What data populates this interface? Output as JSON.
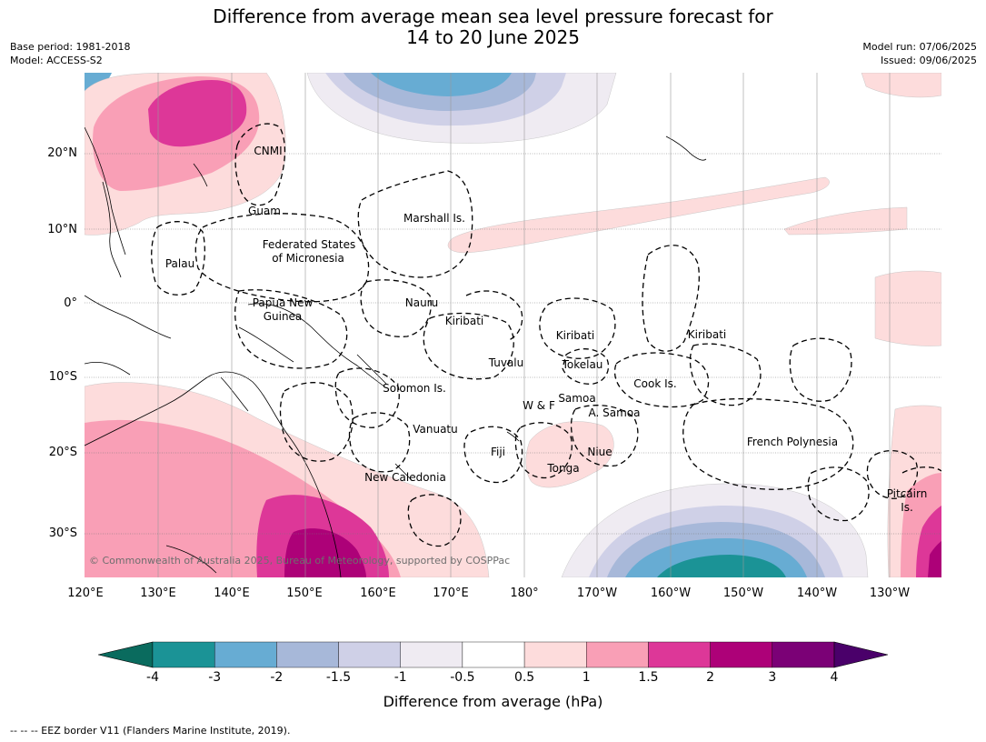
{
  "title_line1": "Difference from average mean sea level pressure forecast for",
  "title_line2": "14 to 20 June 2025",
  "base_period": "Base period: 1981-2018",
  "model": "Model: ACCESS-S2",
  "model_run": "Model run: 07/06/2025",
  "issued": "Issued: 09/06/2025",
  "copyright": "© Commonwealth of Australia 2025, Bureau of Meteorology, supported by COSPPac",
  "footnote": "-- -- -- EEZ border V11 (Flanders Marine Institute, 2019).",
  "lat_labels": [
    "20°N",
    "10°N",
    "0°",
    "10°S",
    "20°S",
    "30°S"
  ],
  "lon_labels": [
    "120°E",
    "130°E",
    "140°E",
    "150°E",
    "160°E",
    "170°E",
    "180°",
    "170°W",
    "160°W",
    "150°W",
    "140°W",
    "130°W"
  ],
  "colorbar": {
    "title": "Difference from average (hPa)",
    "ticks": [
      "-4",
      "-3",
      "-2",
      "-1.5",
      "-1",
      "-0.5",
      "0.5",
      "1",
      "1.5",
      "2",
      "3",
      "4"
    ],
    "colors": [
      "#0a6b5e",
      "#1b9396",
      "#67acd3",
      "#a7b8d9",
      "#cfd0e7",
      "#efebf2",
      "#ffffff",
      "#fddcdc",
      "#f99fb6",
      "#dd3798",
      "#ad0178",
      "#7b0176",
      "#4a006a"
    ]
  },
  "places": {
    "cnmi": "CNMI",
    "guam": "Guam",
    "marshall": "Marshall Is.",
    "fsm1": "Federated States",
    "fsm2": "of Micronesia",
    "palau": "Palau",
    "png1": "Papua New",
    "png2": "Guinea",
    "nauru": "Nauru",
    "kiribati1": "Kiribati",
    "kiribati2": "Kiribati",
    "kiribati3": "Kiribati",
    "tuvalu": "Tuvalu",
    "tokelau": "Tokelau",
    "cook": "Cook Is.",
    "solomon": "Solomon Is.",
    "samoa": "Samoa",
    "wf": "W & F",
    "asamoa": "A. Samoa",
    "vanuatu": "Vanuatu",
    "fiji": "Fiji",
    "niue": "Niue",
    "tonga": "Tonga",
    "frpoly": "French Polynesia",
    "newcal": "New Caledonia",
    "pitcairn1": "Pitcairn",
    "pitcairn2": "Is."
  }
}
